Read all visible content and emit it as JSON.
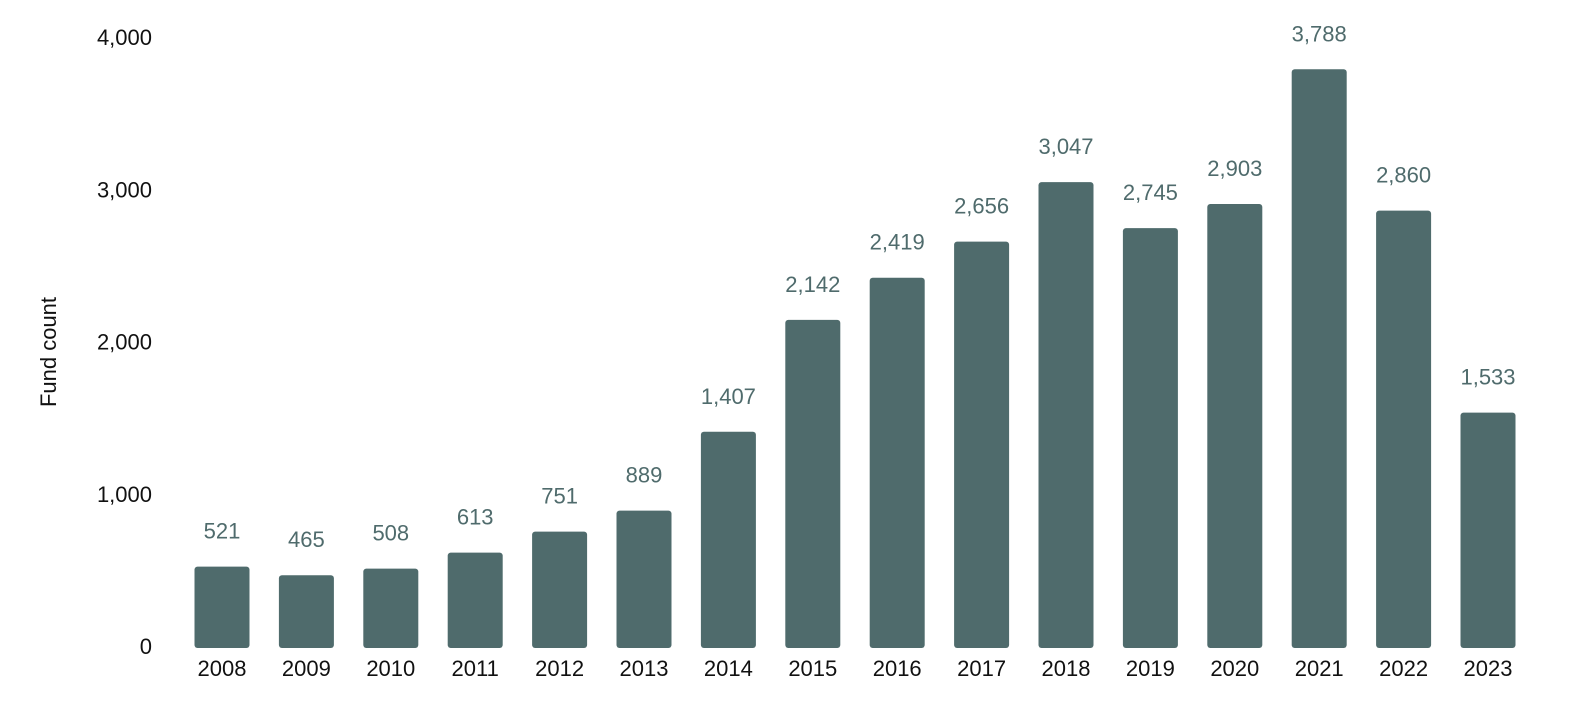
{
  "chart_data": {
    "type": "bar",
    "title": "",
    "xlabel": "",
    "ylabel": "Fund count",
    "ylim": [
      0,
      4000
    ],
    "yticks": [
      0,
      1000,
      2000,
      3000,
      4000
    ],
    "ytick_labels": [
      "0",
      "1,000",
      "2,000",
      "3,000",
      "4,000"
    ],
    "grid": false,
    "legend": "none",
    "bar_color": "#4f6b6c",
    "label_color": "#4f6b6c",
    "categories": [
      "2008",
      "2009",
      "2010",
      "2011",
      "2012",
      "2013",
      "2014",
      "2015",
      "2016",
      "2017",
      "2018",
      "2019",
      "2020",
      "2021",
      "2022",
      "2023"
    ],
    "values": [
      521,
      465,
      508,
      613,
      751,
      889,
      1407,
      2142,
      2419,
      2656,
      3047,
      2745,
      2903,
      3788,
      2860,
      1533
    ],
    "value_labels": [
      "521",
      "465",
      "508",
      "613",
      "751",
      "889",
      "1,407",
      "2,142",
      "2,419",
      "2,656",
      "3,047",
      "2,745",
      "2,903",
      "3,788",
      "2,860",
      "1,533"
    ]
  }
}
